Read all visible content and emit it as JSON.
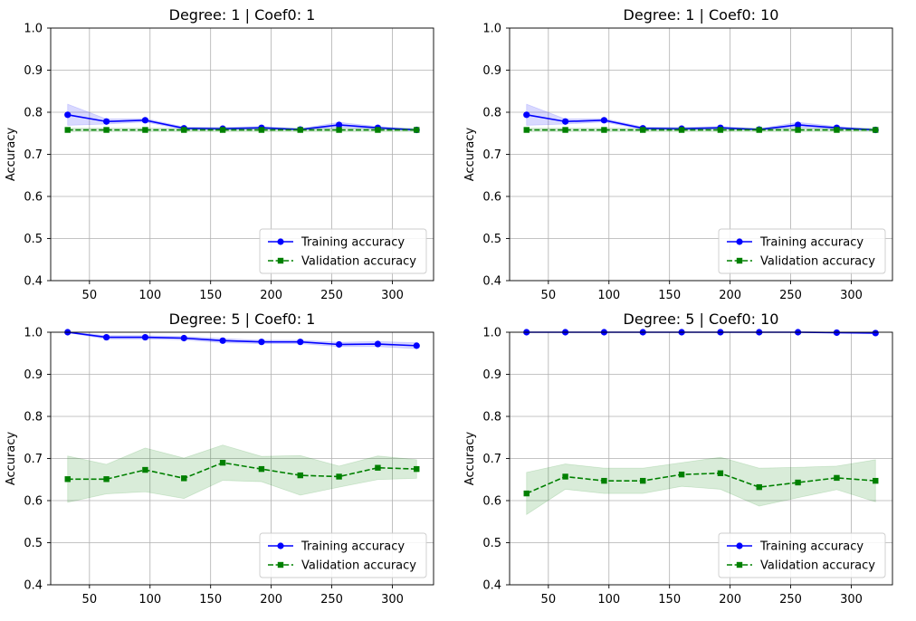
{
  "chart_data": [
    {
      "type": "line",
      "title": "Degree: 1 |  Coef0: 1",
      "xlabel": "",
      "ylabel": "Accuracy",
      "xlim": [
        18,
        334
      ],
      "ylim": [
        0.4,
        1.0
      ],
      "xticks": [
        50,
        100,
        150,
        200,
        250,
        300
      ],
      "yticks": [
        0.4,
        0.5,
        0.6,
        0.7,
        0.8,
        0.9,
        1.0
      ],
      "grid": true,
      "legend_position": "lower-right",
      "x": [
        32,
        64,
        96,
        128,
        160,
        192,
        224,
        256,
        288,
        320
      ],
      "series": [
        {
          "name": "Training accuracy",
          "color": "#0000ff",
          "marker": "circle",
          "linestyle": "solid",
          "values": [
            0.794,
            0.778,
            0.781,
            0.762,
            0.761,
            0.763,
            0.759,
            0.77,
            0.763,
            0.758
          ],
          "band": [
            0.025,
            0.006,
            0.004,
            0.003,
            0.003,
            0.003,
            0.002,
            0.006,
            0.003,
            0.002
          ]
        },
        {
          "name": "Validation accuracy",
          "color": "#008000",
          "marker": "square",
          "linestyle": "dashed",
          "values": [
            0.758,
            0.758,
            0.758,
            0.758,
            0.758,
            0.758,
            0.758,
            0.758,
            0.758,
            0.758
          ],
          "band": [
            0.004,
            0.004,
            0.004,
            0.004,
            0.004,
            0.004,
            0.004,
            0.004,
            0.004,
            0.004
          ]
        }
      ]
    },
    {
      "type": "line",
      "title": "Degree: 1 |  Coef0: 10",
      "xlabel": "",
      "ylabel": "Accuracy",
      "xlim": [
        18,
        334
      ],
      "ylim": [
        0.4,
        1.0
      ],
      "xticks": [
        50,
        100,
        150,
        200,
        250,
        300
      ],
      "yticks": [
        0.4,
        0.5,
        0.6,
        0.7,
        0.8,
        0.9,
        1.0
      ],
      "grid": true,
      "legend_position": "lower-right",
      "x": [
        32,
        64,
        96,
        128,
        160,
        192,
        224,
        256,
        288,
        320
      ],
      "series": [
        {
          "name": "Training accuracy",
          "color": "#0000ff",
          "marker": "circle",
          "linestyle": "solid",
          "values": [
            0.794,
            0.778,
            0.781,
            0.762,
            0.761,
            0.763,
            0.759,
            0.77,
            0.763,
            0.758
          ],
          "band": [
            0.025,
            0.006,
            0.004,
            0.003,
            0.003,
            0.003,
            0.002,
            0.006,
            0.003,
            0.002
          ]
        },
        {
          "name": "Validation accuracy",
          "color": "#008000",
          "marker": "square",
          "linestyle": "dashed",
          "values": [
            0.758,
            0.758,
            0.758,
            0.758,
            0.758,
            0.758,
            0.758,
            0.758,
            0.758,
            0.758
          ],
          "band": [
            0.004,
            0.004,
            0.004,
            0.004,
            0.004,
            0.004,
            0.004,
            0.004,
            0.004,
            0.004
          ]
        }
      ]
    },
    {
      "type": "line",
      "title": "Degree: 5 |  Coef0: 1",
      "xlabel": "",
      "ylabel": "Accuracy",
      "xlim": [
        18,
        334
      ],
      "ylim": [
        0.4,
        1.0
      ],
      "xticks": [
        50,
        100,
        150,
        200,
        250,
        300
      ],
      "yticks": [
        0.4,
        0.5,
        0.6,
        0.7,
        0.8,
        0.9,
        1.0
      ],
      "grid": true,
      "legend_position": "lower-right",
      "x": [
        32,
        64,
        96,
        128,
        160,
        192,
        224,
        256,
        288,
        320
      ],
      "series": [
        {
          "name": "Training accuracy",
          "color": "#0000ff",
          "marker": "circle",
          "linestyle": "solid",
          "values": [
            1.0,
            0.988,
            0.988,
            0.986,
            0.98,
            0.977,
            0.977,
            0.971,
            0.972,
            0.968
          ],
          "band": [
            0.001,
            0.004,
            0.004,
            0.004,
            0.005,
            0.004,
            0.004,
            0.005,
            0.006,
            0.007
          ]
        },
        {
          "name": "Validation accuracy",
          "color": "#008000",
          "marker": "square",
          "linestyle": "dashed",
          "values": [
            0.651,
            0.651,
            0.673,
            0.653,
            0.69,
            0.675,
            0.66,
            0.657,
            0.678,
            0.675
          ],
          "band": [
            0.055,
            0.035,
            0.052,
            0.048,
            0.042,
            0.03,
            0.047,
            0.025,
            0.028,
            0.022
          ]
        }
      ]
    },
    {
      "type": "line",
      "title": "Degree: 5 |  Coef0: 10",
      "xlabel": "",
      "ylabel": "Accuracy",
      "xlim": [
        18,
        334
      ],
      "ylim": [
        0.4,
        1.0
      ],
      "xticks": [
        50,
        100,
        150,
        200,
        250,
        300
      ],
      "yticks": [
        0.4,
        0.5,
        0.6,
        0.7,
        0.8,
        0.9,
        1.0
      ],
      "grid": true,
      "legend_position": "lower-right",
      "x": [
        32,
        64,
        96,
        128,
        160,
        192,
        224,
        256,
        288,
        320
      ],
      "series": [
        {
          "name": "Training accuracy",
          "color": "#0000ff",
          "marker": "circle",
          "linestyle": "solid",
          "values": [
            1.0,
            1.0,
            1.0,
            1.0,
            1.0,
            1.0,
            1.0,
            1.0,
            0.999,
            0.998
          ],
          "band": [
            0.0,
            0.0,
            0.0,
            0.0,
            0.0,
            0.0,
            0.0,
            0.0,
            0.001,
            0.001
          ]
        },
        {
          "name": "Validation accuracy",
          "color": "#008000",
          "marker": "square",
          "linestyle": "dashed",
          "values": [
            0.617,
            0.657,
            0.647,
            0.647,
            0.662,
            0.665,
            0.632,
            0.643,
            0.654,
            0.647
          ],
          "band": [
            0.05,
            0.03,
            0.03,
            0.03,
            0.028,
            0.038,
            0.045,
            0.036,
            0.028,
            0.05
          ]
        }
      ]
    }
  ]
}
